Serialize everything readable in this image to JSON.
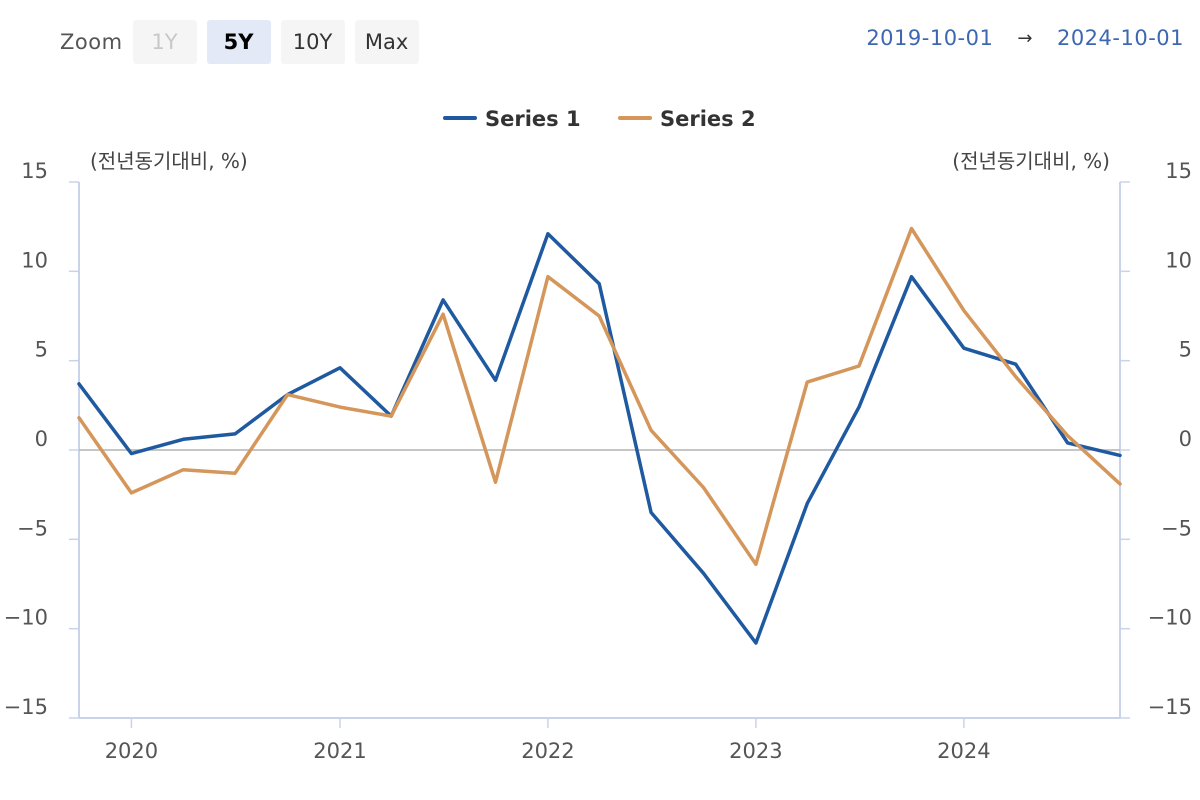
{
  "zoom": {
    "label": "Zoom",
    "buttons": [
      {
        "label": "1Y",
        "state": "disabled"
      },
      {
        "label": "5Y",
        "state": "selected"
      },
      {
        "label": "10Y",
        "state": "normal"
      },
      {
        "label": "Max",
        "state": "normal"
      }
    ]
  },
  "range": {
    "from": "2019-10-01",
    "arrow": "→",
    "to": "2024-10-01"
  },
  "chart_data": {
    "type": "line",
    "left_unit": "(전년동기대비, %)",
    "right_unit": "(전년동기대비, %)",
    "x": [
      "2019-10-01",
      "2020-01-01",
      "2020-04-01",
      "2020-07-01",
      "2020-10-01",
      "2021-01-01",
      "2021-04-01",
      "2021-07-01",
      "2021-10-01",
      "2022-01-01",
      "2022-04-01",
      "2022-07-01",
      "2022-10-01",
      "2023-01-01",
      "2023-04-01",
      "2023-07-01",
      "2023-10-01",
      "2024-01-01",
      "2024-04-01",
      "2024-07-01",
      "2024-10-01"
    ],
    "x_ticks": [
      "2020",
      "2021",
      "2022",
      "2023",
      "2024"
    ],
    "y_ticks": [
      "15",
      "10",
      "5",
      "0",
      "−5",
      "−10",
      "−15"
    ],
    "ylim": [
      -15,
      15
    ],
    "series": [
      {
        "name": "Series 1",
        "color": "#1f5aa0",
        "values": [
          3.7,
          -0.2,
          0.6,
          0.9,
          3.1,
          4.6,
          1.9,
          8.4,
          3.9,
          12.1,
          9.3,
          -3.5,
          -6.9,
          -10.8,
          -3.0,
          2.4,
          9.7,
          5.7,
          4.8,
          0.4,
          -0.3
        ]
      },
      {
        "name": "Series 2",
        "color": "#d4965a",
        "values": [
          1.8,
          -2.4,
          -1.1,
          -1.3,
          3.1,
          2.4,
          1.9,
          7.6,
          -1.8,
          9.7,
          7.5,
          1.1,
          -2.1,
          -6.4,
          3.8,
          4.7,
          12.4,
          7.8,
          4.1,
          0.8,
          -1.9
        ]
      }
    ],
    "grid": false,
    "legend_position": "top-center"
  }
}
